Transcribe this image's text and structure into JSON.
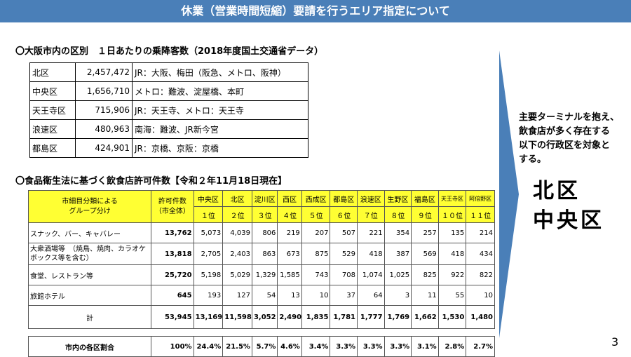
{
  "title": "休業（営業時間短縮）要請を行うエリア指定について",
  "section1": {
    "heading": "〇大阪市内の区別　１日あたりの乗降客数（2018年度国土交通省データ）",
    "rows": [
      {
        "name": "北区",
        "count": "2,457,472",
        "desc": "JR：大阪、梅田（阪急、メトロ、阪神）"
      },
      {
        "name": "中央区",
        "count": "1,656,710",
        "desc": "メトロ：難波、淀屋橋、本町"
      },
      {
        "name": "天王寺区",
        "count": "715,906",
        "desc": "JR：天王寺、メトロ：天王寺"
      },
      {
        "name": "浪速区",
        "count": "480,963",
        "desc": "南海：難波、JR新今宮"
      },
      {
        "name": "都島区",
        "count": "424,901",
        "desc": "JR：京橋、京阪：京橋"
      }
    ]
  },
  "section2": {
    "heading": "〇食品衛生法に基づく飲食店許可件数【令和２年11月18日現在】",
    "group_header": "市細目分類による\nグループ分け",
    "total_header": "許可件数\n（市全体）",
    "wards": [
      "中央区",
      "北区",
      "淀川区",
      "西区",
      "西成区",
      "都島区",
      "浪速区",
      "生野区",
      "福島区",
      "天王寺区",
      "阿倍野区"
    ],
    "ranks": [
      "１位",
      "２位",
      "３位",
      "４位",
      "５位",
      "６位",
      "７位",
      "８位",
      "９位",
      "１０位",
      "１１位"
    ],
    "rows": [
      {
        "label": "スナック、バー、キャバレー",
        "total": "13,762",
        "values": [
          "5,073",
          "4,039",
          "806",
          "219",
          "207",
          "507",
          "221",
          "354",
          "257",
          "135",
          "214"
        ]
      },
      {
        "label": "大衆酒場等　（焼鳥、焼肉、カラオケボックス等を含む）",
        "total": "13,818",
        "values": [
          "2,705",
          "2,403",
          "863",
          "673",
          "875",
          "529",
          "418",
          "387",
          "569",
          "418",
          "434"
        ]
      },
      {
        "label": "食堂、レストラン等",
        "total": "25,720",
        "values": [
          "5,198",
          "5,029",
          "1,329",
          "1,585",
          "743",
          "708",
          "1,074",
          "1,025",
          "825",
          "922",
          "822"
        ]
      },
      {
        "label": "旅館ホテル",
        "total": "645",
        "values": [
          "193",
          "127",
          "54",
          "13",
          "10",
          "37",
          "64",
          "3",
          "11",
          "55",
          "10"
        ]
      },
      {
        "label": "計",
        "total": "53,945",
        "values": [
          "13,169",
          "11,598",
          "3,052",
          "2,490",
          "1,835",
          "1,781",
          "1,777",
          "1,769",
          "1,662",
          "1,530",
          "1,480"
        ]
      }
    ],
    "ratio": {
      "label": "市内の各区割合",
      "total": "100%",
      "values": [
        "24.4%",
        "21.5%",
        "5.7%",
        "4.6%",
        "3.4%",
        "3.3%",
        "3.3%",
        "3.3%",
        "3.1%",
        "2.8%",
        "2.7%"
      ]
    }
  },
  "side_text": "主要ターミナルを抱え、飲食店が多く存在する以下の行政区を対象とする。",
  "side_lines": [
    "主要ターミナルを抱え、",
    "飲食店が多く存在する",
    "以下の行政区を対象と",
    "する。"
  ],
  "targets": [
    "北区",
    "中央区"
  ],
  "page_number": "3",
  "colors": {
    "titlebar": "#4a7fb8",
    "arrow": "#4a7fb8",
    "highlight": "#ffff33"
  }
}
